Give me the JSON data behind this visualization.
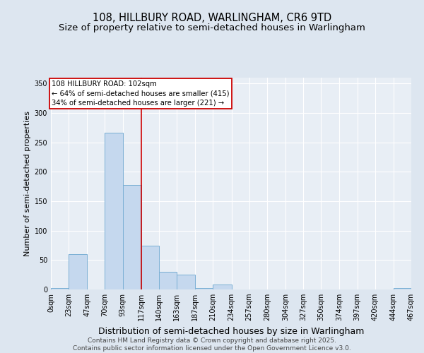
{
  "title": "108, HILLBURY ROAD, WARLINGHAM, CR6 9TD",
  "subtitle": "Size of property relative to semi-detached houses in Warlingham",
  "xlabel": "Distribution of semi-detached houses by size in Warlingham",
  "ylabel": "Number of semi-detached properties",
  "bar_edges": [
    0,
    23,
    47,
    70,
    93,
    117,
    140,
    163,
    187,
    210,
    234,
    257,
    280,
    304,
    327,
    350,
    374,
    397,
    420,
    444,
    467
  ],
  "bar_heights": [
    2,
    60,
    0,
    267,
    178,
    75,
    30,
    25,
    2,
    8,
    0,
    0,
    0,
    0,
    0,
    0,
    0,
    0,
    0,
    2
  ],
  "bar_color": "#c5d8ee",
  "bar_edge_color": "#7aafd4",
  "bar_linewidth": 0.7,
  "vline_x": 117,
  "vline_color": "#cc0000",
  "vline_linewidth": 1.2,
  "annotation_line1": "108 HILLBURY ROAD: 102sqm",
  "annotation_line2": "← 64% of semi-detached houses are smaller (415)",
  "annotation_line3": "34% of semi-detached houses are larger (221) →",
  "ylim": [
    0,
    360
  ],
  "yticks": [
    0,
    50,
    100,
    150,
    200,
    250,
    300,
    350
  ],
  "bg_color": "#dde6f0",
  "plot_bg_color": "#e8eef5",
  "title_fontsize": 10.5,
  "subtitle_fontsize": 9.5,
  "xlabel_fontsize": 9,
  "ylabel_fontsize": 8,
  "tick_fontsize": 7,
  "footer_line1": "Contains HM Land Registry data © Crown copyright and database right 2025.",
  "footer_line2": "Contains public sector information licensed under the Open Government Licence v3.0.",
  "footer_fontsize": 6.5
}
